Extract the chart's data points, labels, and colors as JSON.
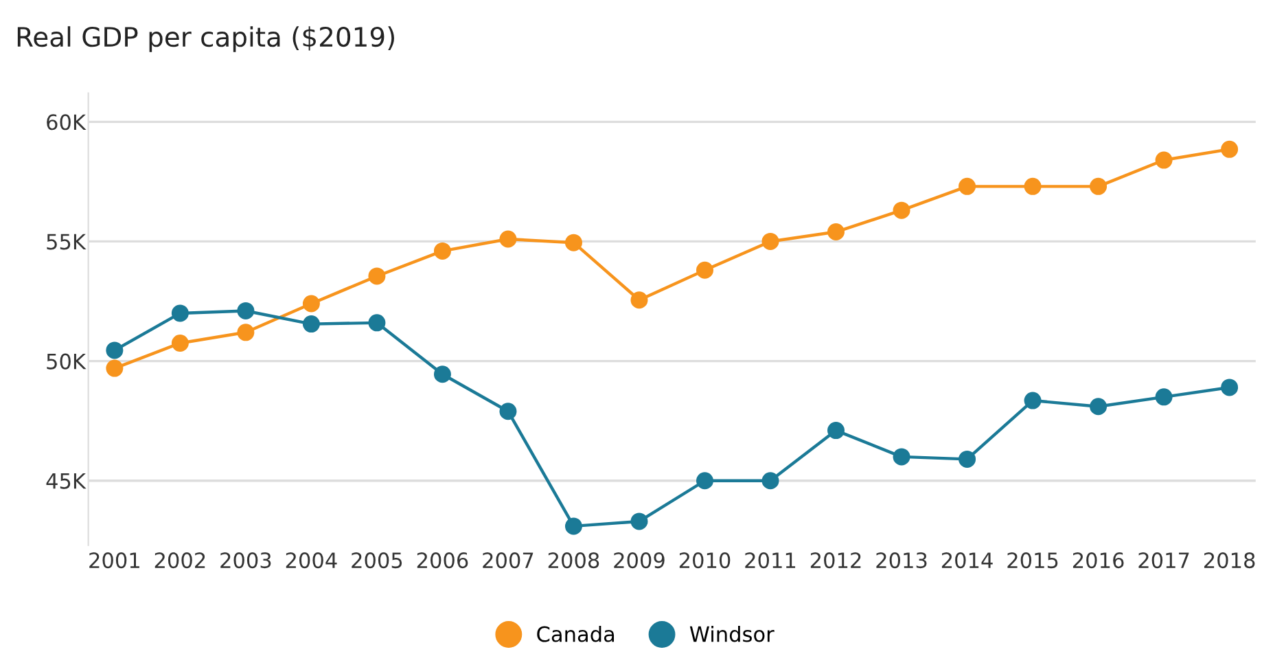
{
  "chart_data": {
    "type": "line",
    "title": "Real GDP per capita ($2019)",
    "categories": [
      "2001",
      "2002",
      "2003",
      "2004",
      "2005",
      "2006",
      "2007",
      "2008",
      "2009",
      "2010",
      "2011",
      "2012",
      "2013",
      "2014",
      "2015",
      "2016",
      "2017",
      "2018"
    ],
    "series": [
      {
        "name": "Canada",
        "color": "#f7941d",
        "values": [
          49700,
          50750,
          51200,
          52400,
          53550,
          54600,
          55100,
          54950,
          52550,
          53800,
          55000,
          55400,
          56300,
          57300,
          57300,
          57300,
          58400,
          58850
        ]
      },
      {
        "name": "Windsor",
        "color": "#1b7a97",
        "values": [
          50450,
          52000,
          52100,
          51550,
          51600,
          49450,
          47900,
          43100,
          43300,
          45000,
          45000,
          47100,
          46000,
          45900,
          48350,
          48100,
          48500,
          48900
        ]
      }
    ],
    "ylim": [
      42300,
      61200
    ],
    "yticks": [
      {
        "value": 45000,
        "label": "45K"
      },
      {
        "value": 50000,
        "label": "50K"
      },
      {
        "value": 55000,
        "label": "55K"
      },
      {
        "value": 60000,
        "label": "60K"
      }
    ],
    "grid": "y",
    "legend": "bottom",
    "marker": "circle",
    "line_style": "solid"
  }
}
